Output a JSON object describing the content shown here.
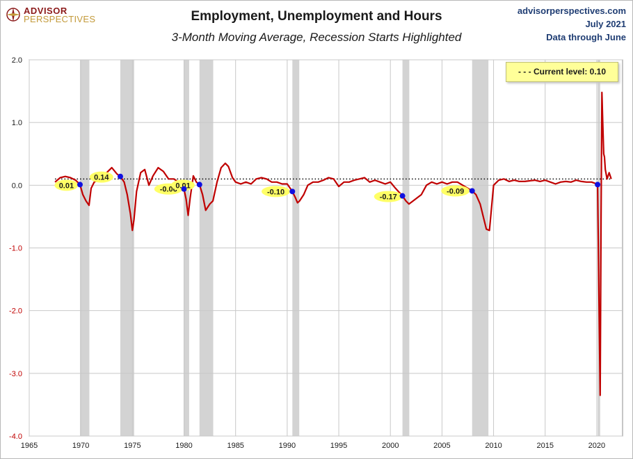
{
  "header": {
    "logo_top": "ADVISOR",
    "logo_bottom": "PERSPECTIVES",
    "source_site": "advisorperspectives.com",
    "source_date": "July 2021",
    "source_note": "Data through June"
  },
  "colors": {
    "series": "#c00000",
    "recession": "#d3d3d3",
    "marker": "#1010e0",
    "label_bg": "#ffff66",
    "axis_label_neg": "#c00000",
    "logo_red": "#8b1a1a",
    "logo_gold": "#c39a3a",
    "source_blue": "#1f3d73"
  },
  "chart_data": {
    "type": "line",
    "title": "Employment, Unemployment and Hours",
    "subtitle_prefix": "3",
    "subtitle": "-Month Moving Average, Recession Starts Highlighted",
    "xlim": [
      1965,
      2022.5
    ],
    "ylim": [
      -4.0,
      2.0
    ],
    "x_ticks": [
      1965,
      1970,
      1975,
      1980,
      1985,
      1990,
      1995,
      2000,
      2005,
      2010,
      2015,
      2020
    ],
    "y_ticks": [
      {
        "value": 2.0,
        "label": "2.0"
      },
      {
        "value": 1.0,
        "label": "1.0"
      },
      {
        "value": 0.0,
        "label": "0.0"
      },
      {
        "value": -1.0,
        "label": "-1.0"
      },
      {
        "value": -2.0,
        "label": "-2.0"
      },
      {
        "value": -3.0,
        "label": "-3.0"
      },
      {
        "value": -4.0,
        "label": "-4.0"
      }
    ],
    "grid": true,
    "current_level": 0.1,
    "legend_text": "- - -  Current level: 0.10",
    "recessions": [
      [
        1969.92,
        1970.83
      ],
      [
        1973.83,
        1975.17
      ],
      [
        1980.0,
        1980.5
      ],
      [
        1981.5,
        1982.83
      ],
      [
        1990.5,
        1991.17
      ],
      [
        2001.17,
        2001.83
      ],
      [
        2007.92,
        2009.5
      ],
      [
        2020.08,
        2020.33
      ]
    ],
    "recession_start_markers": [
      {
        "x": 1969.92,
        "y": 0.01,
        "label": "0.01",
        "label_x": 1968.6,
        "label_y": 0.0
      },
      {
        "x": 1973.83,
        "y": 0.14,
        "label": "0.14",
        "label_x": 1972.0,
        "label_y": 0.13
      },
      {
        "x": 1980.0,
        "y": -0.06,
        "label": "-0.06",
        "label_x": 1978.5,
        "label_y": -0.06
      },
      {
        "x": 1981.5,
        "y": 0.01,
        "label": "0.01",
        "label_x": 1979.9,
        "label_y": 0.0
      },
      {
        "x": 1990.5,
        "y": -0.1,
        "label": "-0.10",
        "label_x": 1988.9,
        "label_y": -0.1
      },
      {
        "x": 2001.17,
        "y": -0.17,
        "label": "-0.17",
        "label_x": 1999.8,
        "label_y": -0.18
      },
      {
        "x": 2007.92,
        "y": -0.09,
        "label": "-0.09",
        "label_x": 2006.3,
        "label_y": -0.09
      },
      {
        "x": 2020.08,
        "y": 0.01,
        "label": null
      }
    ],
    "series": [
      {
        "x": [
          1967.5,
          1968.0,
          1968.5,
          1969.0,
          1969.5,
          1969.92,
          1970.2,
          1970.5,
          1970.8,
          1971.0,
          1971.3,
          1971.7,
          1972.0,
          1972.5,
          1973.0,
          1973.5,
          1973.83,
          1974.2,
          1974.5,
          1974.8,
          1975.0,
          1975.15,
          1975.4,
          1975.8,
          1976.2,
          1976.6,
          1977.0,
          1977.5,
          1978.0,
          1978.5,
          1979.0,
          1979.5,
          1980.0,
          1980.2,
          1980.4,
          1980.6,
          1980.9,
          1981.2,
          1981.5,
          1981.8,
          1982.1,
          1982.5,
          1982.8,
          1983.2,
          1983.6,
          1984.0,
          1984.3,
          1984.7,
          1985.0,
          1985.5,
          1986.0,
          1986.5,
          1987.0,
          1987.5,
          1988.0,
          1988.5,
          1989.0,
          1989.5,
          1990.0,
          1990.5,
          1990.8,
          1991.0,
          1991.2,
          1991.6,
          1992.0,
          1992.5,
          1993.0,
          1993.5,
          1994.0,
          1994.5,
          1995.0,
          1995.5,
          1996.0,
          1996.5,
          1997.0,
          1997.5,
          1998.0,
          1998.5,
          1999.0,
          1999.5,
          2000.0,
          2000.5,
          2001.17,
          2001.5,
          2001.8,
          2002.2,
          2002.6,
          2003.0,
          2003.5,
          2004.0,
          2004.5,
          2005.0,
          2005.5,
          2006.0,
          2006.5,
          2007.0,
          2007.5,
          2007.92,
          2008.3,
          2008.7,
          2009.0,
          2009.3,
          2009.6,
          2010.0,
          2010.5,
          2011.0,
          2011.5,
          2012.0,
          2012.5,
          2013.0,
          2013.5,
          2014.0,
          2014.5,
          2015.0,
          2015.5,
          2016.0,
          2016.5,
          2017.0,
          2017.5,
          2018.0,
          2018.5,
          2019.0,
          2019.5,
          2020.0,
          2020.08,
          2020.17,
          2020.33,
          2020.42,
          2020.5,
          2020.58,
          2020.67,
          2020.75,
          2020.83,
          2021.0,
          2021.2,
          2021.4
        ],
        "y": [
          0.05,
          0.12,
          0.14,
          0.12,
          0.08,
          0.01,
          -0.15,
          -0.25,
          -0.32,
          -0.05,
          0.05,
          0.08,
          0.12,
          0.2,
          0.28,
          0.18,
          0.14,
          0.05,
          -0.15,
          -0.45,
          -0.72,
          -0.55,
          -0.1,
          0.2,
          0.25,
          0.0,
          0.15,
          0.28,
          0.22,
          0.1,
          0.1,
          0.05,
          -0.06,
          -0.22,
          -0.48,
          -0.2,
          0.15,
          0.05,
          0.01,
          -0.15,
          -0.4,
          -0.3,
          -0.25,
          0.05,
          0.28,
          0.35,
          0.3,
          0.12,
          0.05,
          0.02,
          0.05,
          0.02,
          0.1,
          0.12,
          0.1,
          0.05,
          0.05,
          0.02,
          0.02,
          -0.1,
          -0.2,
          -0.28,
          -0.25,
          -0.15,
          0.0,
          0.05,
          0.05,
          0.08,
          0.12,
          0.1,
          -0.02,
          0.05,
          0.05,
          0.08,
          0.1,
          0.12,
          0.05,
          0.08,
          0.05,
          0.02,
          0.05,
          -0.05,
          -0.17,
          -0.25,
          -0.3,
          -0.25,
          -0.2,
          -0.15,
          0.0,
          0.05,
          0.02,
          0.05,
          0.02,
          0.05,
          0.05,
          0.0,
          -0.05,
          -0.09,
          -0.15,
          -0.3,
          -0.5,
          -0.7,
          -0.72,
          0.0,
          0.08,
          0.1,
          0.06,
          0.08,
          0.06,
          0.06,
          0.07,
          0.08,
          0.06,
          0.08,
          0.05,
          0.02,
          0.05,
          0.06,
          0.05,
          0.08,
          0.06,
          0.05,
          0.05,
          0.02,
          0.01,
          -1.2,
          -3.35,
          -0.5,
          1.48,
          1.0,
          0.5,
          0.45,
          0.25,
          0.1,
          0.2,
          0.1
        ]
      }
    ]
  }
}
